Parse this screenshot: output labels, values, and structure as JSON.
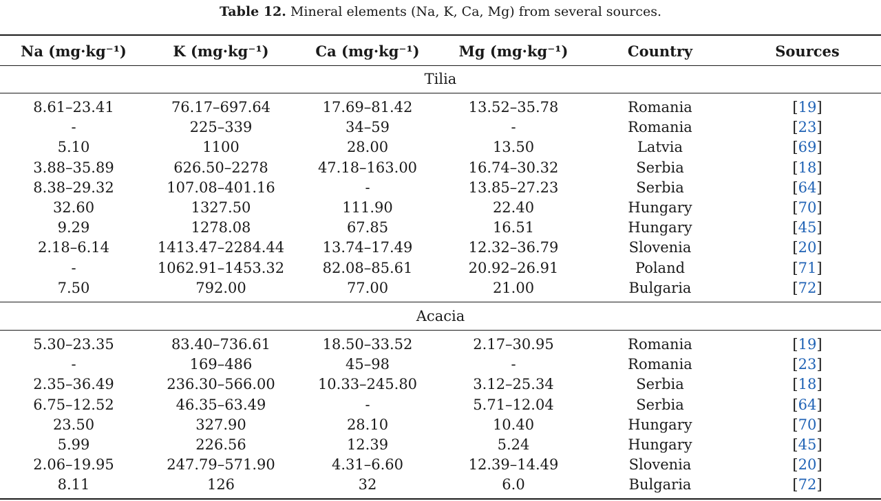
{
  "caption": {
    "label": "Table 12.",
    "text": "Mineral elements (Na, K, Ca, Mg) from several sources."
  },
  "headers": [
    "Na (mg·kg⁻¹)",
    "K (mg·kg⁻¹)",
    "Ca (mg·kg⁻¹)",
    "Mg (mg·kg⁻¹)",
    "Country",
    "Sources"
  ],
  "sections": [
    {
      "title": "Tilia",
      "rows": [
        {
          "na": "8.61–23.41",
          "k": "76.17–697.64",
          "ca": "17.69–81.42",
          "mg": "13.52–35.78",
          "country": "Romania",
          "source": "19"
        },
        {
          "na": "-",
          "k": "225–339",
          "ca": "34–59",
          "mg": "-",
          "country": "Romania",
          "source": "23"
        },
        {
          "na": "5.10",
          "k": "1100",
          "ca": "28.00",
          "mg": "13.50",
          "country": "Latvia",
          "source": "69"
        },
        {
          "na": "3.88–35.89",
          "k": "626.50–2278",
          "ca": "47.18–163.00",
          "mg": "16.74–30.32",
          "country": "Serbia",
          "source": "18"
        },
        {
          "na": "8.38–29.32",
          "k": "107.08–401.16",
          "ca": "-",
          "mg": "13.85–27.23",
          "country": "Serbia",
          "source": "64"
        },
        {
          "na": "32.60",
          "k": "1327.50",
          "ca": "111.90",
          "mg": "22.40",
          "country": "Hungary",
          "source": "70"
        },
        {
          "na": "9.29",
          "k": "1278.08",
          "ca": "67.85",
          "mg": "16.51",
          "country": "Hungary",
          "source": "45"
        },
        {
          "na": "2.18–6.14",
          "k": "1413.47–2284.44",
          "ca": "13.74–17.49",
          "mg": "12.32–36.79",
          "country": "Slovenia",
          "source": "20"
        },
        {
          "na": "-",
          "k": "1062.91–1453.32",
          "ca": "82.08–85.61",
          "mg": "20.92–26.91",
          "country": "Poland",
          "source": "71"
        },
        {
          "na": "7.50",
          "k": "792.00",
          "ca": "77.00",
          "mg": "21.00",
          "country": "Bulgaria",
          "source": "72"
        }
      ]
    },
    {
      "title": "Acacia",
      "rows": [
        {
          "na": "5.30–23.35",
          "k": "83.40–736.61",
          "ca": "18.50–33.52",
          "mg": "2.17–30.95",
          "country": "Romania",
          "source": "19"
        },
        {
          "na": "-",
          "k": "169–486",
          "ca": "45–98",
          "mg": "-",
          "country": "Romania",
          "source": "23"
        },
        {
          "na": "2.35–36.49",
          "k": "236.30–566.00",
          "ca": "10.33–245.80",
          "mg": "3.12–25.34",
          "country": "Serbia",
          "source": "18"
        },
        {
          "na": "6.75–12.52",
          "k": "46.35–63.49",
          "ca": "-",
          "mg": "5.71–12.04",
          "country": "Serbia",
          "source": "64"
        },
        {
          "na": "23.50",
          "k": "327.90",
          "ca": "28.10",
          "mg": "10.40",
          "country": "Hungary",
          "source": "70"
        },
        {
          "na": "5.99",
          "k": "226.56",
          "ca": "12.39",
          "mg": "5.24",
          "country": "Hungary",
          "source": "45"
        },
        {
          "na": "2.06–19.95",
          "k": "247.79–571.90",
          "ca": "4.31–6.60",
          "mg": "12.39–14.49",
          "country": "Slovenia",
          "source": "20"
        },
        {
          "na": "8.11",
          "k": "126",
          "ca": "32",
          "mg": "6.0",
          "country": "Bulgaria",
          "source": "72"
        }
      ]
    }
  ]
}
